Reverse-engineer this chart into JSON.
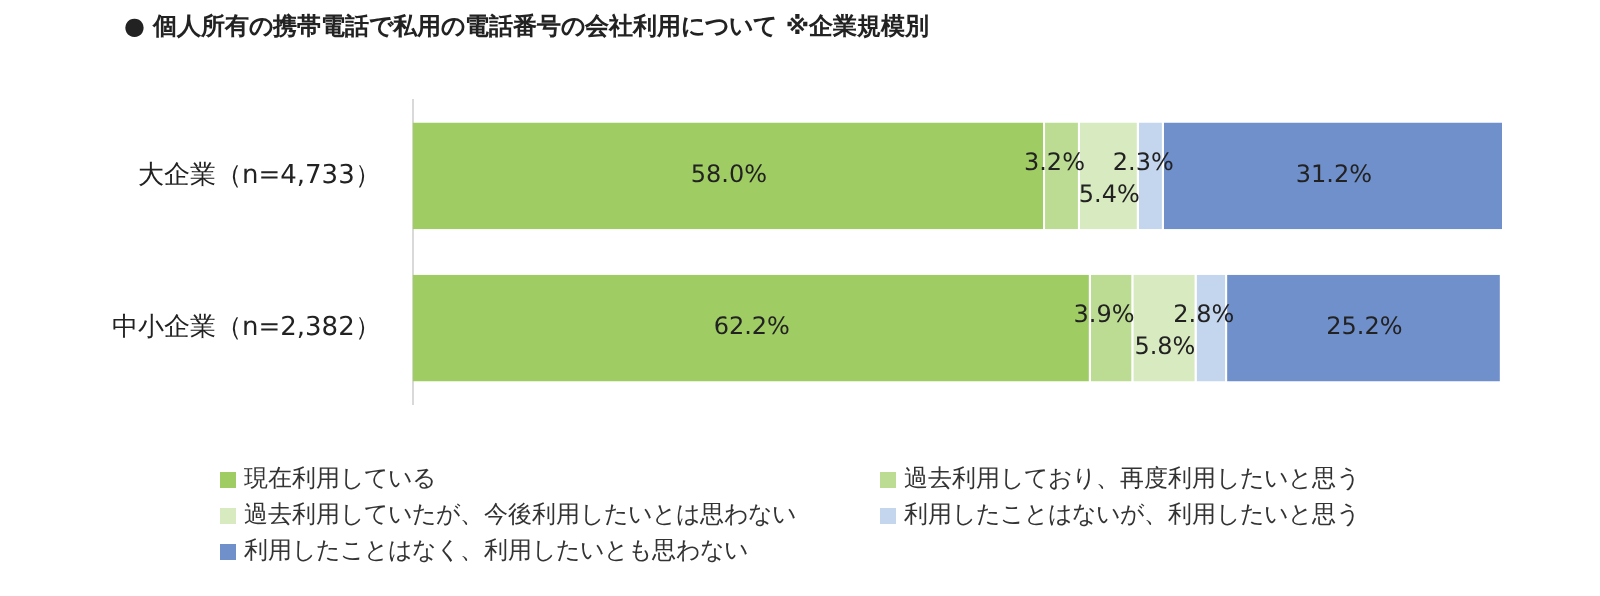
{
  "chart_data": {
    "type": "bar",
    "orientation": "horizontal",
    "stacked": true,
    "title": "●  個人所有の携帯電話で私用の電話番号の会社利用について ※企業規模別",
    "categories": [
      "大企業（n=4,733）",
      "中小企業（n=2,382）"
    ],
    "xlim": [
      0,
      100.1
    ],
    "tick_labels": "y",
    "legend": "bottom",
    "series": [
      {
        "name": "現在利用している",
        "color": "#a0cc64",
        "values": [
          58.0,
          62.2
        ],
        "value_labels": [
          "58.0%",
          "62.2%"
        ]
      },
      {
        "name": "過去利用しており、再度利用したいと思う",
        "color": "#bcdc94",
        "values": [
          3.2,
          3.9
        ],
        "value_labels": [
          "3.2%",
          "3.9%"
        ]
      },
      {
        "name": "過去利用していたが、今後利用したいとは思わない",
        "color": "#d8eac0",
        "values": [
          5.4,
          5.8
        ],
        "value_labels": [
          "5.4%",
          "5.8%"
        ]
      },
      {
        "name": "利用したことはないが、利用したいと思う",
        "color": "#c4d6ee",
        "values": [
          2.3,
          2.8
        ],
        "value_labels": [
          "2.3%",
          "2.8%"
        ]
      },
      {
        "name": "利用したことはなく、利用したいとも思わない",
        "color": "#7090cc",
        "values": [
          31.2,
          25.2
        ],
        "value_labels": [
          "31.2%",
          "25.2%"
        ]
      }
    ]
  }
}
